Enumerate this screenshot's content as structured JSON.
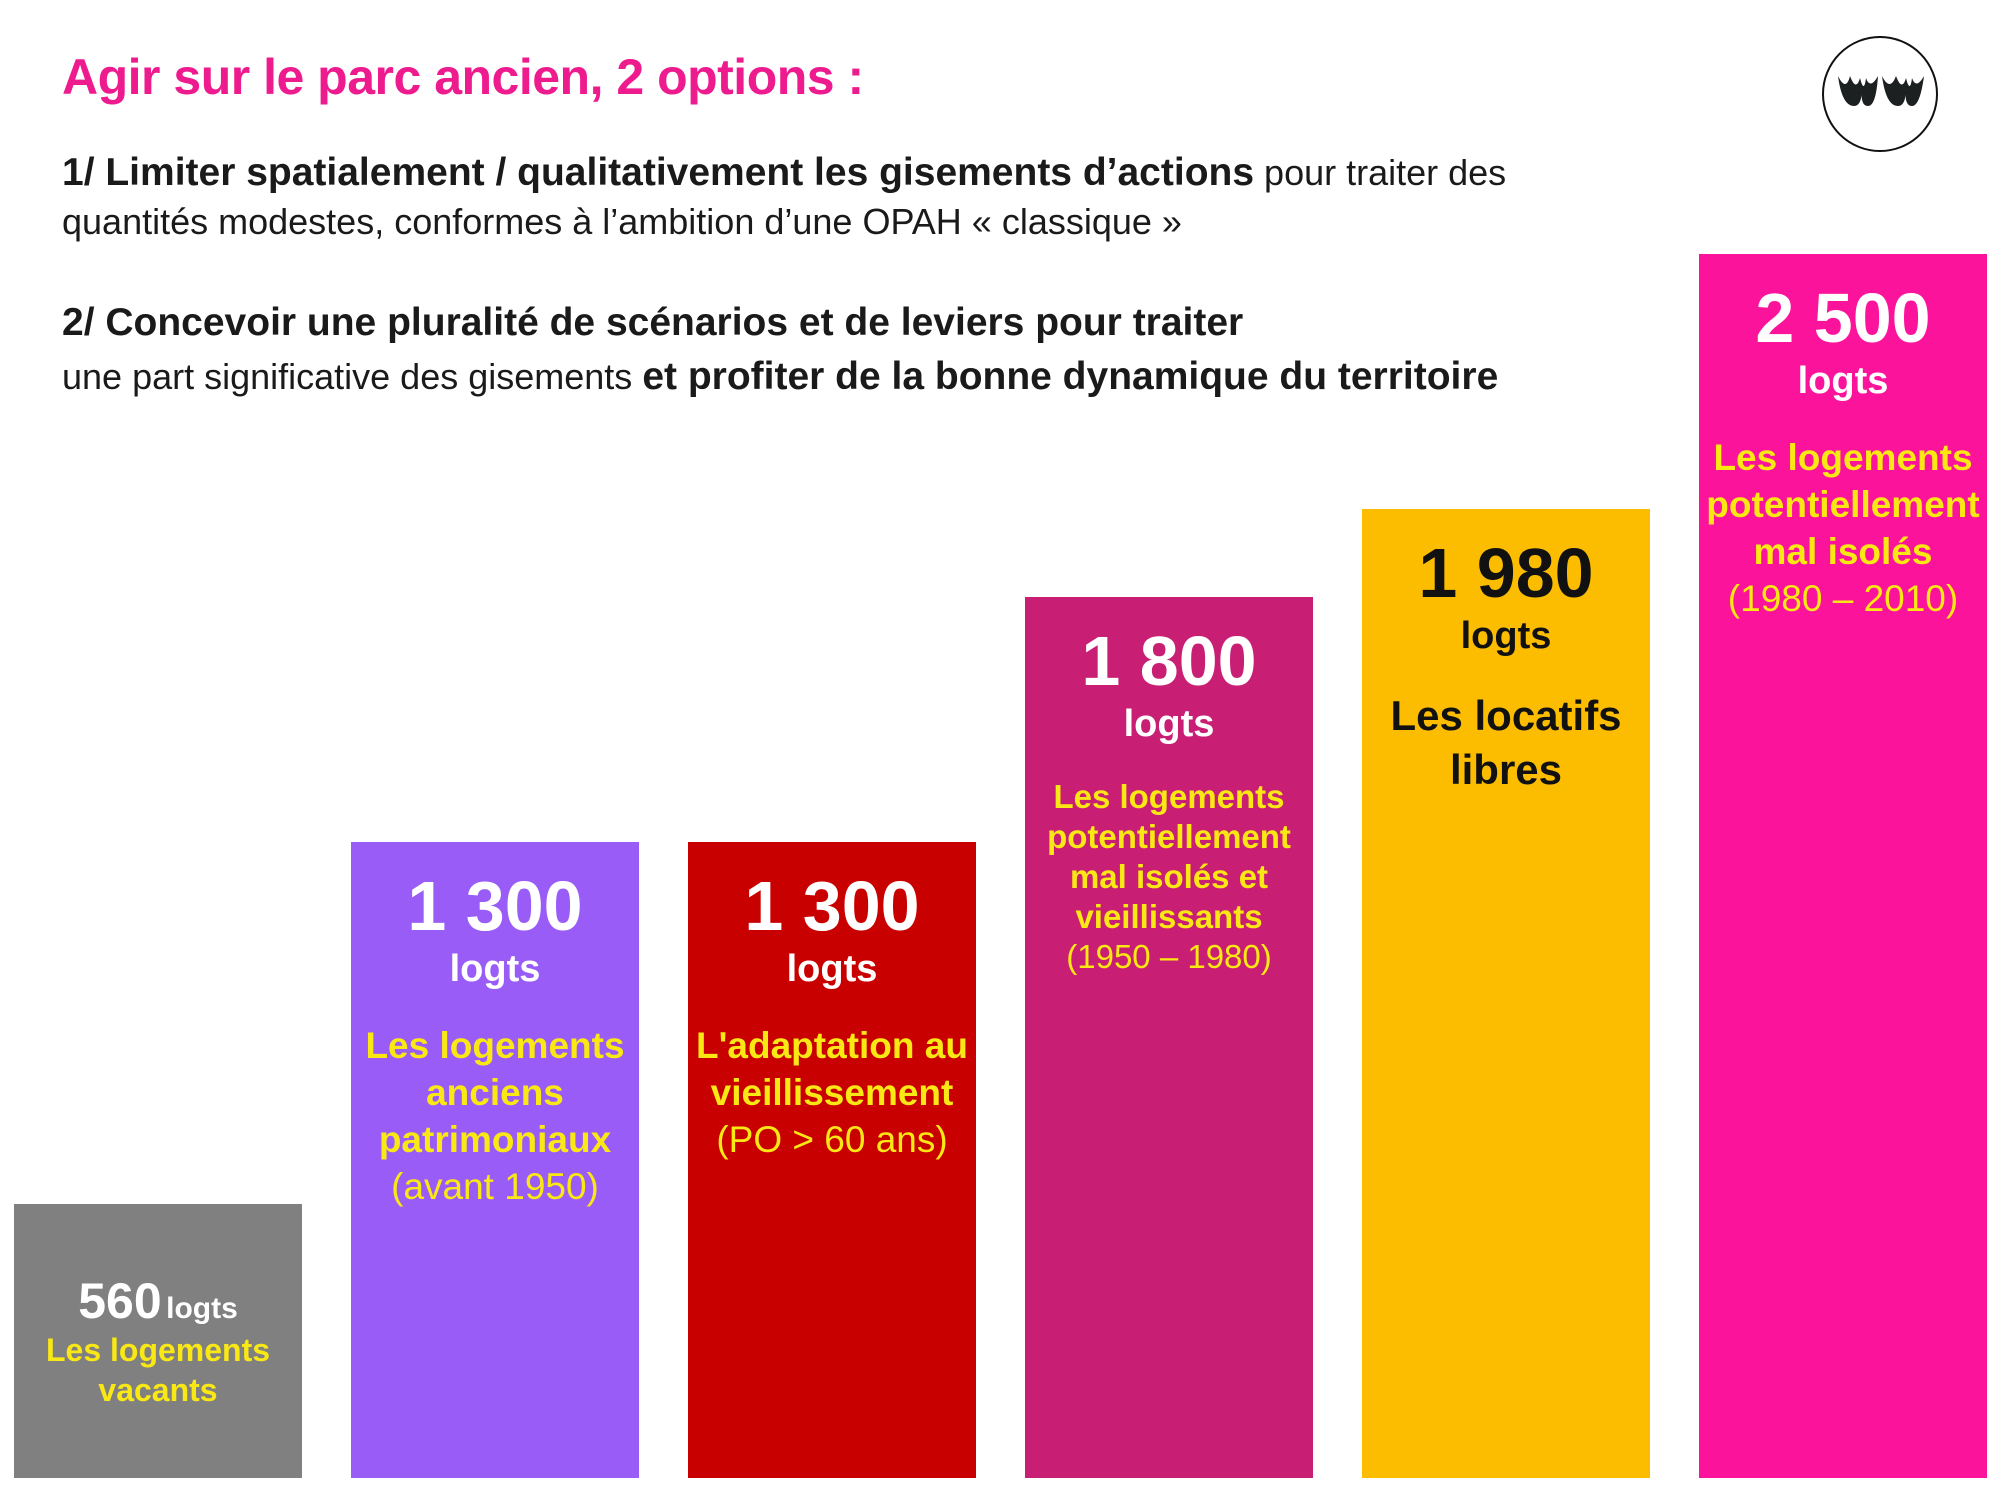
{
  "title": "Agir sur le parc ancien, 2 options :",
  "option1": {
    "bold": "1/ Limiter spatialement / qualitativement les gisements d’actions",
    "regular": " pour traiter des quantités modestes, conformes à l’ambition d’une OPAH « classique »"
  },
  "option2": {
    "bold1": "2/ Concevoir une pluralité de scénarios et de leviers pour traiter",
    "regular": "une part significative des gisements ",
    "bold2": "et profiter de la bonne dynamique du territoire"
  },
  "logo_icon": "brand-logo-icon",
  "colors": {
    "title": "#ee1b8f",
    "highlight_text": "#f9e814"
  },
  "chart_data": {
    "type": "bar",
    "categories": [
      "Les logements vacants",
      "Les logements anciens patrimoniaux",
      "L'adaptation au vieillissement",
      "Les logements potentiellement mal isolés et vieillissants",
      "Les locatifs libres",
      "Les logements potentiellement mal isolés"
    ],
    "values": [
      560,
      1300,
      1300,
      1800,
      1980,
      2500
    ],
    "colors": [
      "#808080",
      "#9a5cf7",
      "#c90000",
      "#c81f74",
      "#fcbd00",
      "#fc139b"
    ],
    "bars": [
      {
        "value_label": "560",
        "unit": "logts",
        "desc": "Les logements vacants",
        "sub": ""
      },
      {
        "value_label": "1 300",
        "unit": "logts",
        "desc": "Les logements anciens patrimoniaux",
        "sub": "(avant 1950)"
      },
      {
        "value_label": "1 300",
        "unit": "logts",
        "desc": "L'adaptation au vieillissement",
        "sub": "(PO > 60 ans)"
      },
      {
        "value_label": "1 800",
        "unit": "logts",
        "desc": "Les logements potentiellement mal isolés et vieillissants",
        "sub": "(1950 – 1980)"
      },
      {
        "value_label": "1 980",
        "unit": "logts",
        "desc": "Les locatifs libres",
        "sub": ""
      },
      {
        "value_label": "2 500",
        "unit": "logts",
        "desc": "Les logements potentiellement mal isolés",
        "sub": "(1980 – 2010)"
      }
    ],
    "ylim": [
      0,
      2500
    ],
    "title": "",
    "xlabel": "",
    "ylabel": ""
  }
}
